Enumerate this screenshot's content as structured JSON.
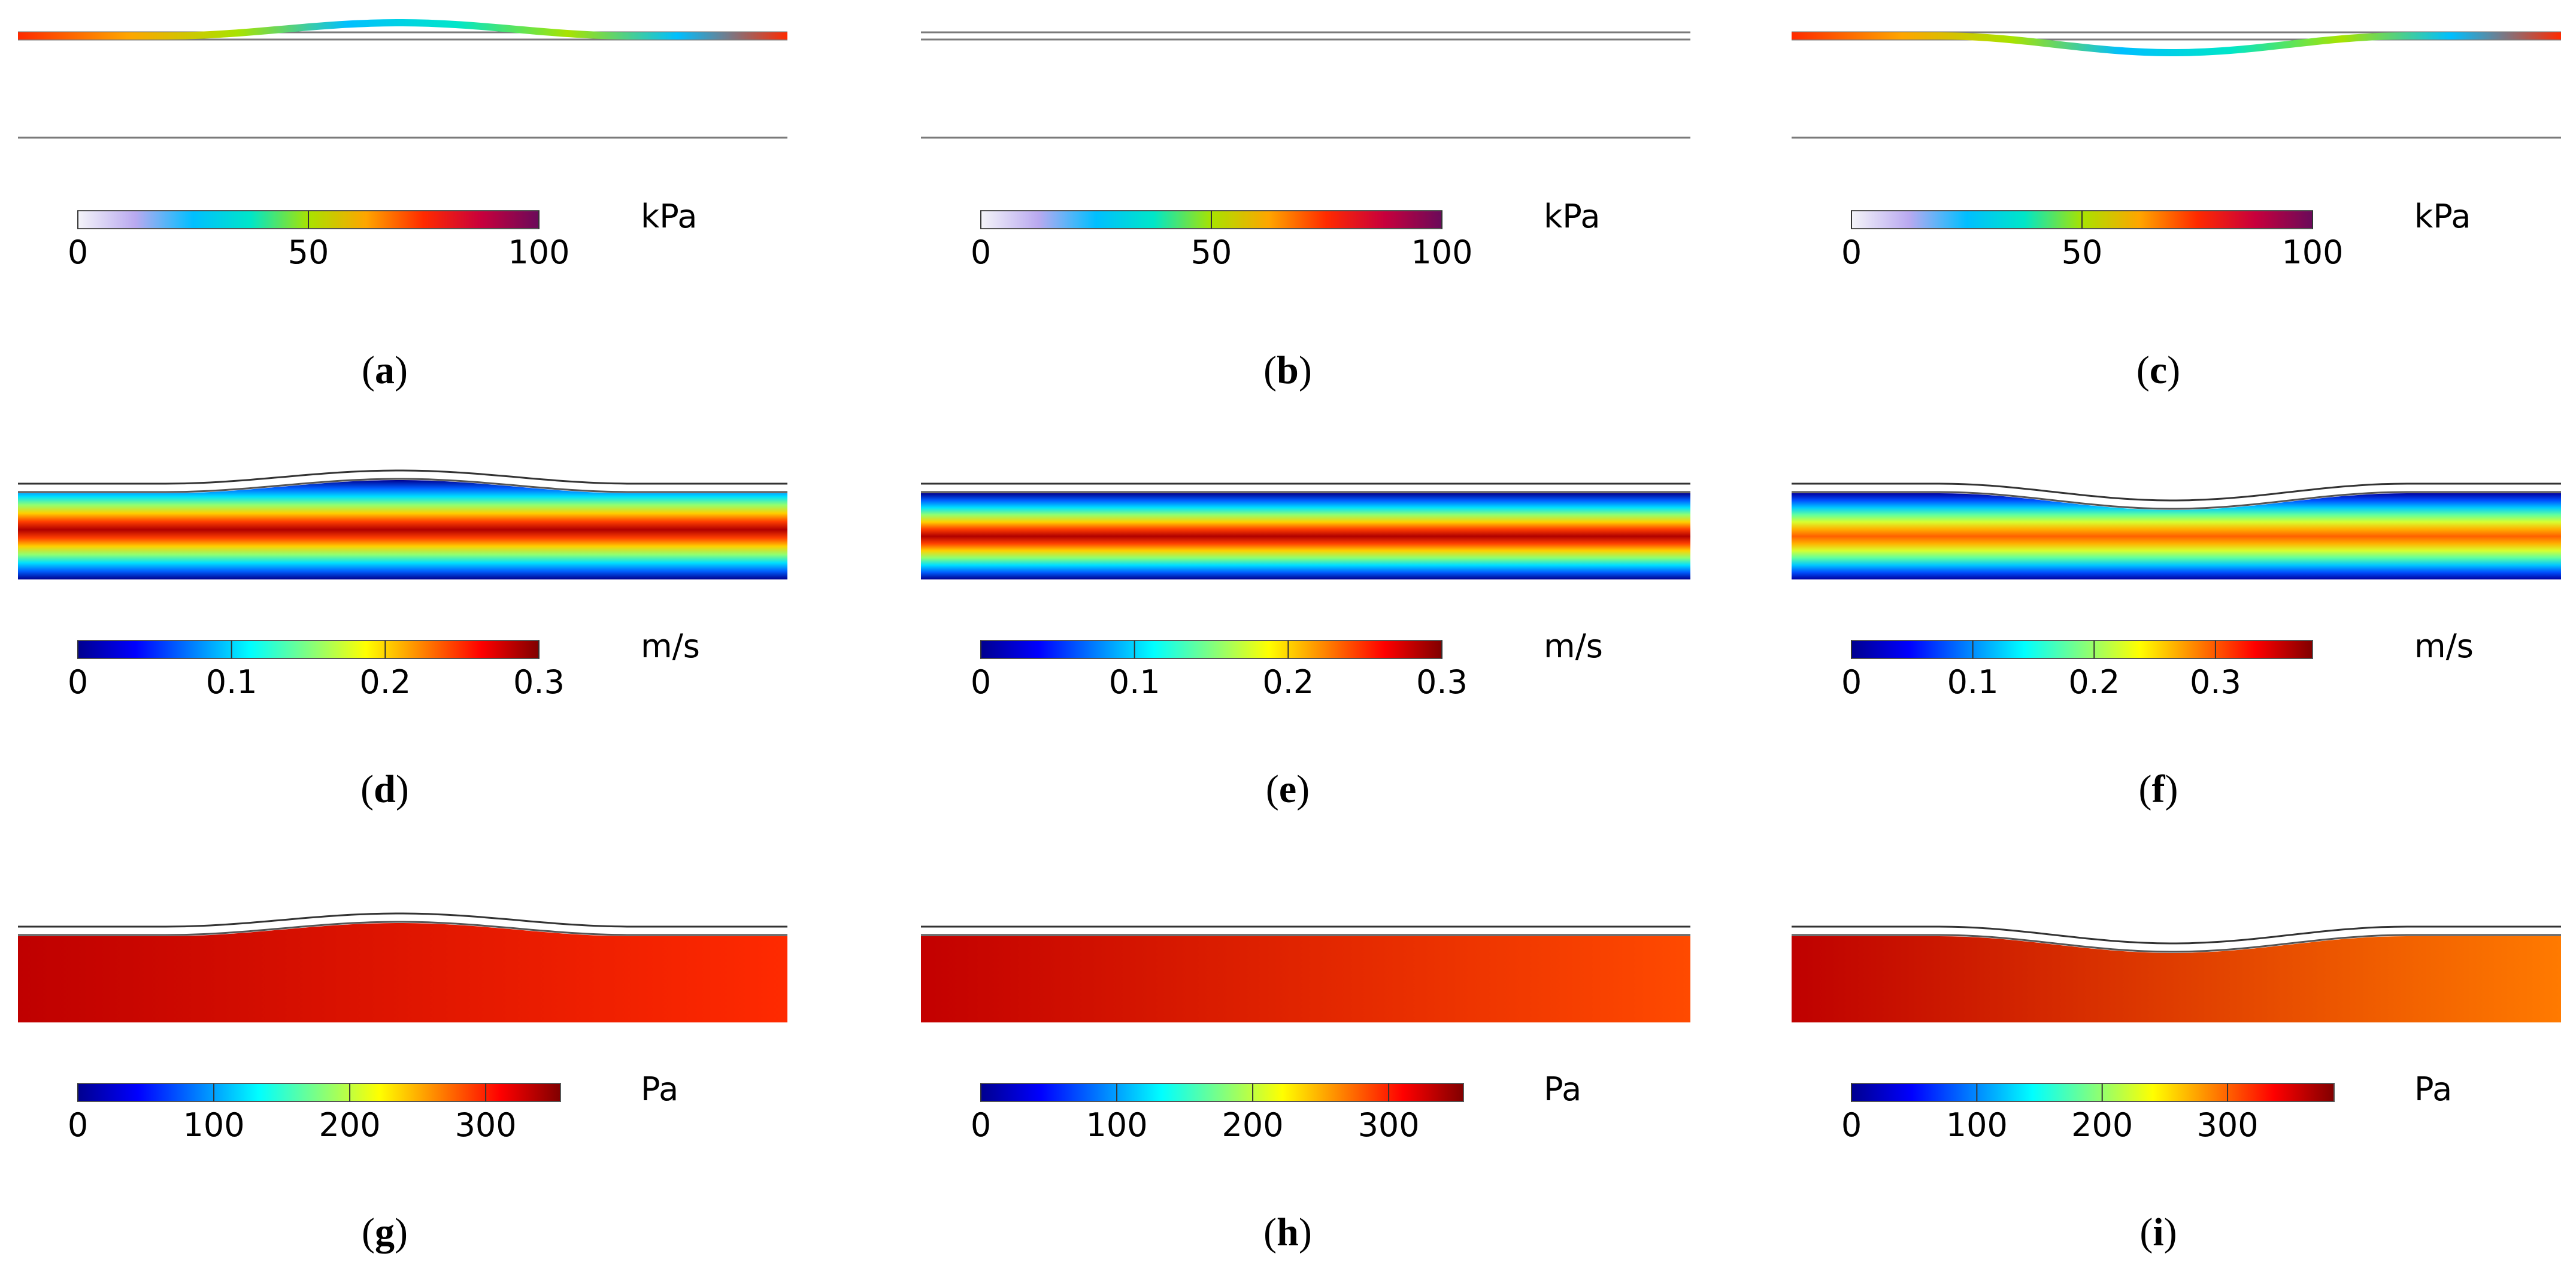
{
  "figure": {
    "panels": [
      {
        "id": "a",
        "caption": "a",
        "field": "stress",
        "wall": "bulge",
        "unit": "kPa",
        "ticks": [
          "0",
          "50",
          "100"
        ],
        "tick_values": [
          0,
          50,
          100
        ],
        "range": [
          0,
          100
        ],
        "colormap": "stress"
      },
      {
        "id": "b",
        "caption": "b",
        "field": "stress",
        "wall": "straight",
        "unit": "kPa",
        "ticks": [
          "0",
          "50",
          "100"
        ],
        "tick_values": [
          0,
          50,
          100
        ],
        "range": [
          0,
          100
        ],
        "colormap": "stress"
      },
      {
        "id": "c",
        "caption": "c",
        "field": "stress",
        "wall": "dip",
        "unit": "kPa",
        "ticks": [
          "0",
          "50",
          "100"
        ],
        "tick_values": [
          0,
          50,
          100
        ],
        "range": [
          0,
          100
        ],
        "colormap": "stress"
      },
      {
        "id": "d",
        "caption": "d",
        "field": "velocity",
        "wall": "bulge",
        "unit": "m/s",
        "ticks": [
          "0",
          "0.1",
          "0.2",
          "0.3"
        ],
        "tick_values": [
          0,
          0.1,
          0.2,
          0.3
        ],
        "range": [
          0,
          0.3
        ],
        "colormap": "jet"
      },
      {
        "id": "e",
        "caption": "e",
        "field": "velocity",
        "wall": "straight",
        "unit": "m/s",
        "ticks": [
          "0",
          "0.1",
          "0.2",
          "0.3"
        ],
        "tick_values": [
          0,
          0.1,
          0.2,
          0.3
        ],
        "range": [
          0,
          0.3
        ],
        "colormap": "jet"
      },
      {
        "id": "f",
        "caption": "f",
        "field": "velocity",
        "wall": "dip",
        "unit": "m/s",
        "ticks": [
          "0",
          "0.1",
          "0.2",
          "0.3"
        ],
        "tick_values": [
          0,
          0.1,
          0.2,
          0.3
        ],
        "range": [
          0,
          0.38
        ],
        "colormap": "jet"
      },
      {
        "id": "g",
        "caption": "g",
        "field": "pressure",
        "wall": "bulge",
        "unit": "Pa",
        "ticks": [
          "0",
          "100",
          "200",
          "300"
        ],
        "tick_values": [
          0,
          100,
          200,
          300
        ],
        "range": [
          0,
          355
        ],
        "colormap": "jet"
      },
      {
        "id": "h",
        "caption": "h",
        "field": "pressure",
        "wall": "straight",
        "unit": "Pa",
        "ticks": [
          "0",
          "100",
          "200",
          "300"
        ],
        "tick_values": [
          0,
          100,
          200,
          300
        ],
        "range": [
          0,
          355
        ],
        "colormap": "jet"
      },
      {
        "id": "i",
        "caption": "i",
        "field": "pressure",
        "wall": "dip",
        "unit": "Pa",
        "ticks": [
          "0",
          "100",
          "200",
          "300"
        ],
        "tick_values": [
          0,
          100,
          200,
          300
        ],
        "range": [
          0,
          385
        ],
        "colormap": "jet"
      }
    ],
    "colors": {
      "jet": [
        "#00008f",
        "#0000ff",
        "#0080ff",
        "#00ffff",
        "#80ff80",
        "#ffff00",
        "#ff8000",
        "#ff0000",
        "#800000"
      ],
      "stress": [
        "#f4f4f8",
        "#b9a9f0",
        "#00bfff",
        "#00e6c8",
        "#a8e300",
        "#ffa500",
        "#ff2a00",
        "#c8003c",
        "#6a0a5a"
      ],
      "outline": "#7a7a7a",
      "pressure_bulge": [
        "#bf0000",
        "#ff2a00"
      ],
      "pressure_straight": [
        "#c30000",
        "#ff4a00"
      ],
      "pressure_dip": [
        "#bf0000",
        "#ff7a00"
      ]
    }
  }
}
